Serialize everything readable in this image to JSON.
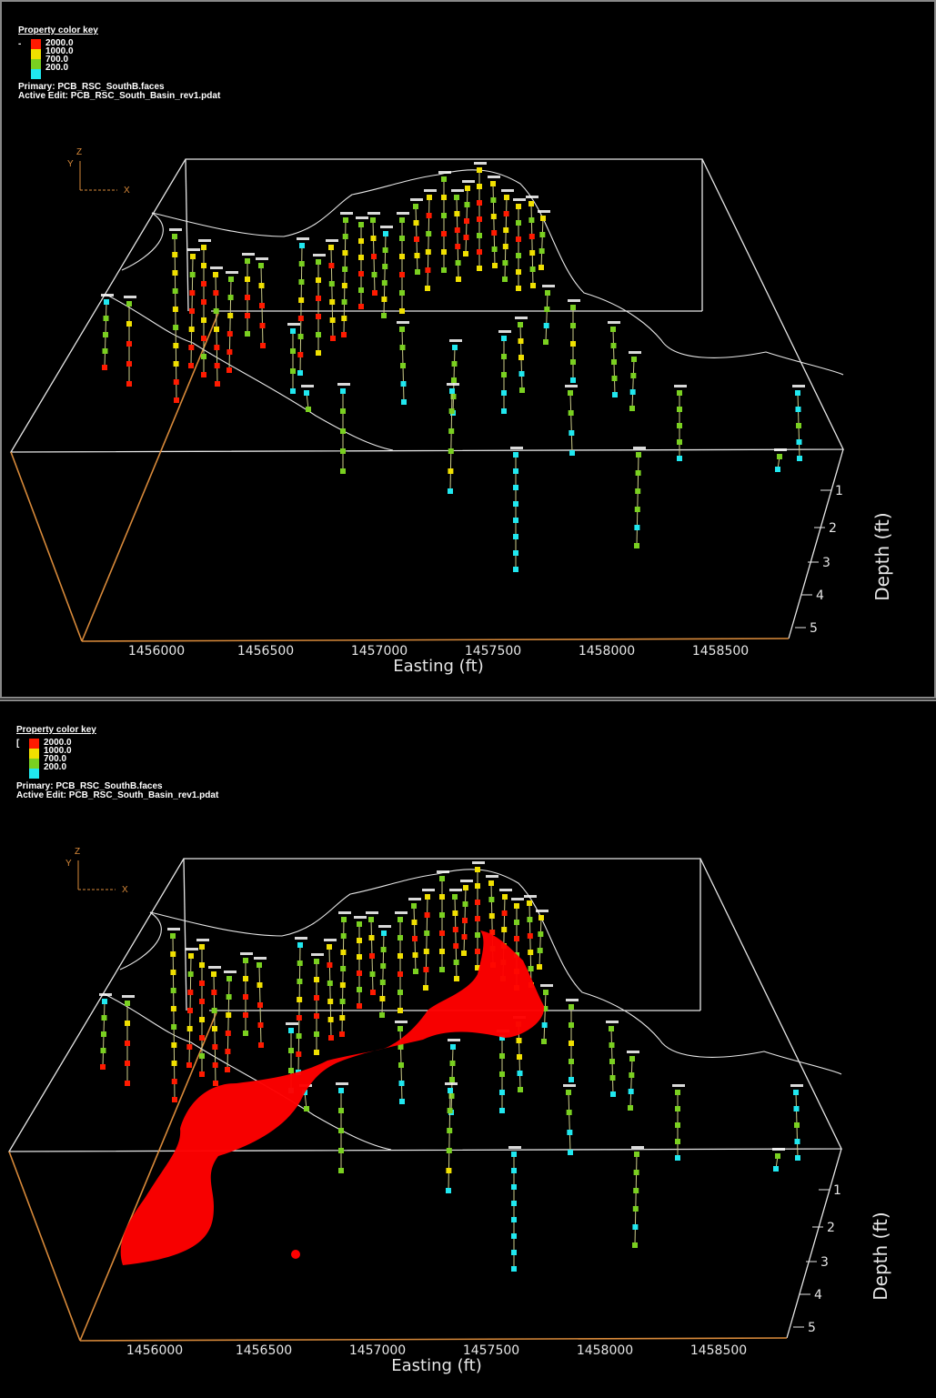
{
  "colors": {
    "background": "#000000",
    "box": "#e6e6e6",
    "axis_orange": "#d98a3a",
    "red": "#ff1a00",
    "yellow": "#f0e000",
    "green": "#7ad020",
    "cyan": "#20e8f0",
    "body_red": "#ff0000"
  },
  "panels": [
    {
      "key_title": "Property color key",
      "key_lead": "-",
      "legend_values": [
        "2000.0",
        "1000.0",
        "700.0",
        "200.0"
      ],
      "primary": "Primary:  PCB_RSC_SouthB.faces",
      "active_edit": "Active Edit:  PCB_RSC_South_Basin_rev1.pdat",
      "show_body": false
    },
    {
      "key_title": "Property color key",
      "key_lead": "[",
      "legend_values": [
        "2000.0",
        "1000.0",
        "700.0",
        "200.0"
      ],
      "primary": "Primary:  PCB_RSC_SouthB.faces",
      "active_edit": "Active Edit:  PCB_RSC_South_Basin_rev1.pdat",
      "show_body": true
    }
  ],
  "axes": {
    "x_label": "Easting  (ft)",
    "x_ticks": [
      "1456000",
      "1456500",
      "1457000",
      "1457500",
      "1458000",
      "1458500"
    ],
    "z_label": "Depth (ft)",
    "z_ticks": [
      "1",
      "2",
      "3",
      "4",
      "5"
    ],
    "triad": {
      "z": "Z",
      "y": "Y",
      "x": "X"
    }
  }
}
